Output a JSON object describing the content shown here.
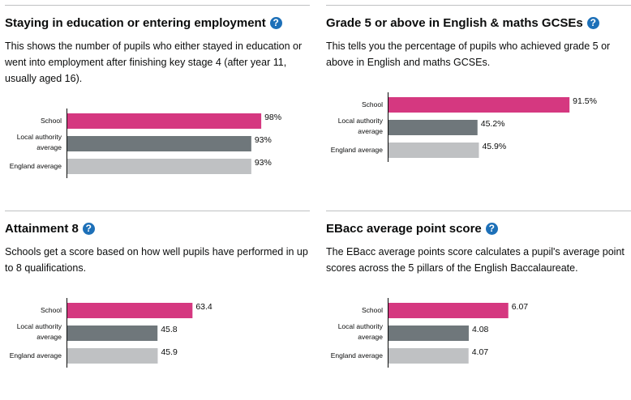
{
  "colors": {
    "school": "#d53880",
    "local_authority": "#6f777b",
    "england": "#bfc1c3",
    "help_icon": "#1d70b8",
    "axis": "#0b0c0c",
    "rule": "#bfc1c3"
  },
  "panels": [
    {
      "title": "Staying in education or entering employment",
      "description": "This shows the number of pupils who either stayed in education or went into employment after finishing key stage 4 (after year 11, usually aged 16).",
      "help_icon": "question-mark-icon"
    },
    {
      "title": "Grade 5 or above in English & maths GCSEs",
      "description": "This tells you the percentage of pupils who achieved grade 5 or above in English and maths GCSEs.",
      "help_icon": "question-mark-icon"
    },
    {
      "title": "Attainment 8",
      "description": "Schools get a score based on how well pupils have performed in up to 8 qualifications.",
      "help_icon": "question-mark-icon"
    },
    {
      "title": "EBacc average point score",
      "description": "The EBacc average points score calculates a pupil's average point scores across the 5 pillars of the English Baccalaureate.",
      "help_icon": "question-mark-icon"
    }
  ],
  "chart_data": [
    {
      "type": "bar",
      "orientation": "horizontal",
      "title": "Staying in education or entering employment",
      "categories": [
        "School",
        "Local authority average",
        "England average"
      ],
      "values": [
        98,
        93,
        93
      ],
      "value_labels": [
        "98%",
        "93%",
        "93%"
      ],
      "xlim": [
        0,
        100
      ],
      "grid": false
    },
    {
      "type": "bar",
      "orientation": "horizontal",
      "title": "Grade 5 or above in English & maths GCSEs",
      "categories": [
        "School",
        "Local authority average",
        "England average"
      ],
      "values": [
        91.5,
        45.2,
        45.9
      ],
      "value_labels": [
        "91.5%",
        "45.2%",
        "45.9%"
      ],
      "xlim": [
        0,
        100
      ],
      "grid": false
    },
    {
      "type": "bar",
      "orientation": "horizontal",
      "title": "Attainment 8",
      "categories": [
        "School",
        "Local authority average",
        "England average"
      ],
      "values": [
        63.4,
        45.8,
        45.9
      ],
      "value_labels": [
        "63.4",
        "45.8",
        "45.9"
      ],
      "xlim": [
        0,
        100
      ],
      "grid": false
    },
    {
      "type": "bar",
      "orientation": "horizontal",
      "title": "EBacc average point score",
      "categories": [
        "School",
        "Local authority average",
        "England average"
      ],
      "values": [
        6.07,
        4.08,
        4.07
      ],
      "value_labels": [
        "6.07",
        "4.08",
        "4.07"
      ],
      "xlim": [
        0,
        10
      ],
      "grid": false
    }
  ]
}
